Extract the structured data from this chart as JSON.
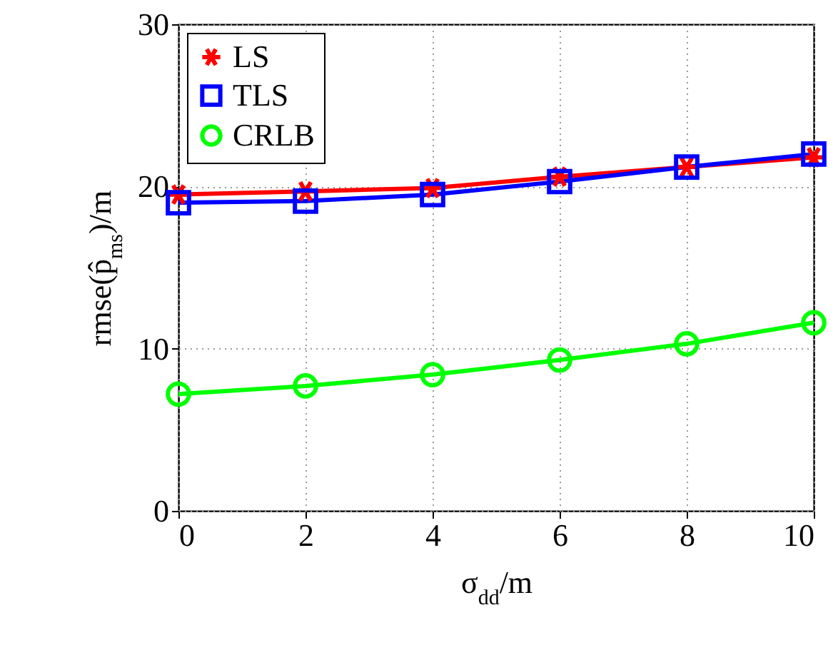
{
  "chart_data": {
    "type": "line",
    "xlabel": "σ$_{dd}$/m",
    "ylabel": "rmse(p̂$_{ms}$)/m",
    "x": [
      0,
      2,
      4,
      6,
      8,
      10
    ],
    "series": [
      {
        "name": "LS",
        "color": "#ff0000",
        "marker": "cross",
        "values": [
          19.5,
          19.7,
          19.9,
          20.6,
          21.2,
          21.8
        ]
      },
      {
        "name": "TLS",
        "color": "#0000ff",
        "marker": "square",
        "values": [
          19.0,
          19.1,
          19.5,
          20.3,
          21.2,
          22.0
        ]
      },
      {
        "name": "CRLB",
        "color": "#00ff00",
        "marker": "circle",
        "values": [
          7.2,
          7.7,
          8.4,
          9.3,
          10.3,
          11.6
        ]
      }
    ],
    "xlim": [
      0,
      10
    ],
    "xticks": [
      0,
      2,
      4,
      6,
      8,
      10
    ],
    "ylim": [
      0,
      30
    ],
    "yticks": [
      0,
      10,
      20,
      30
    ],
    "grid": true,
    "legend": "top left",
    "line_style": "solid"
  }
}
